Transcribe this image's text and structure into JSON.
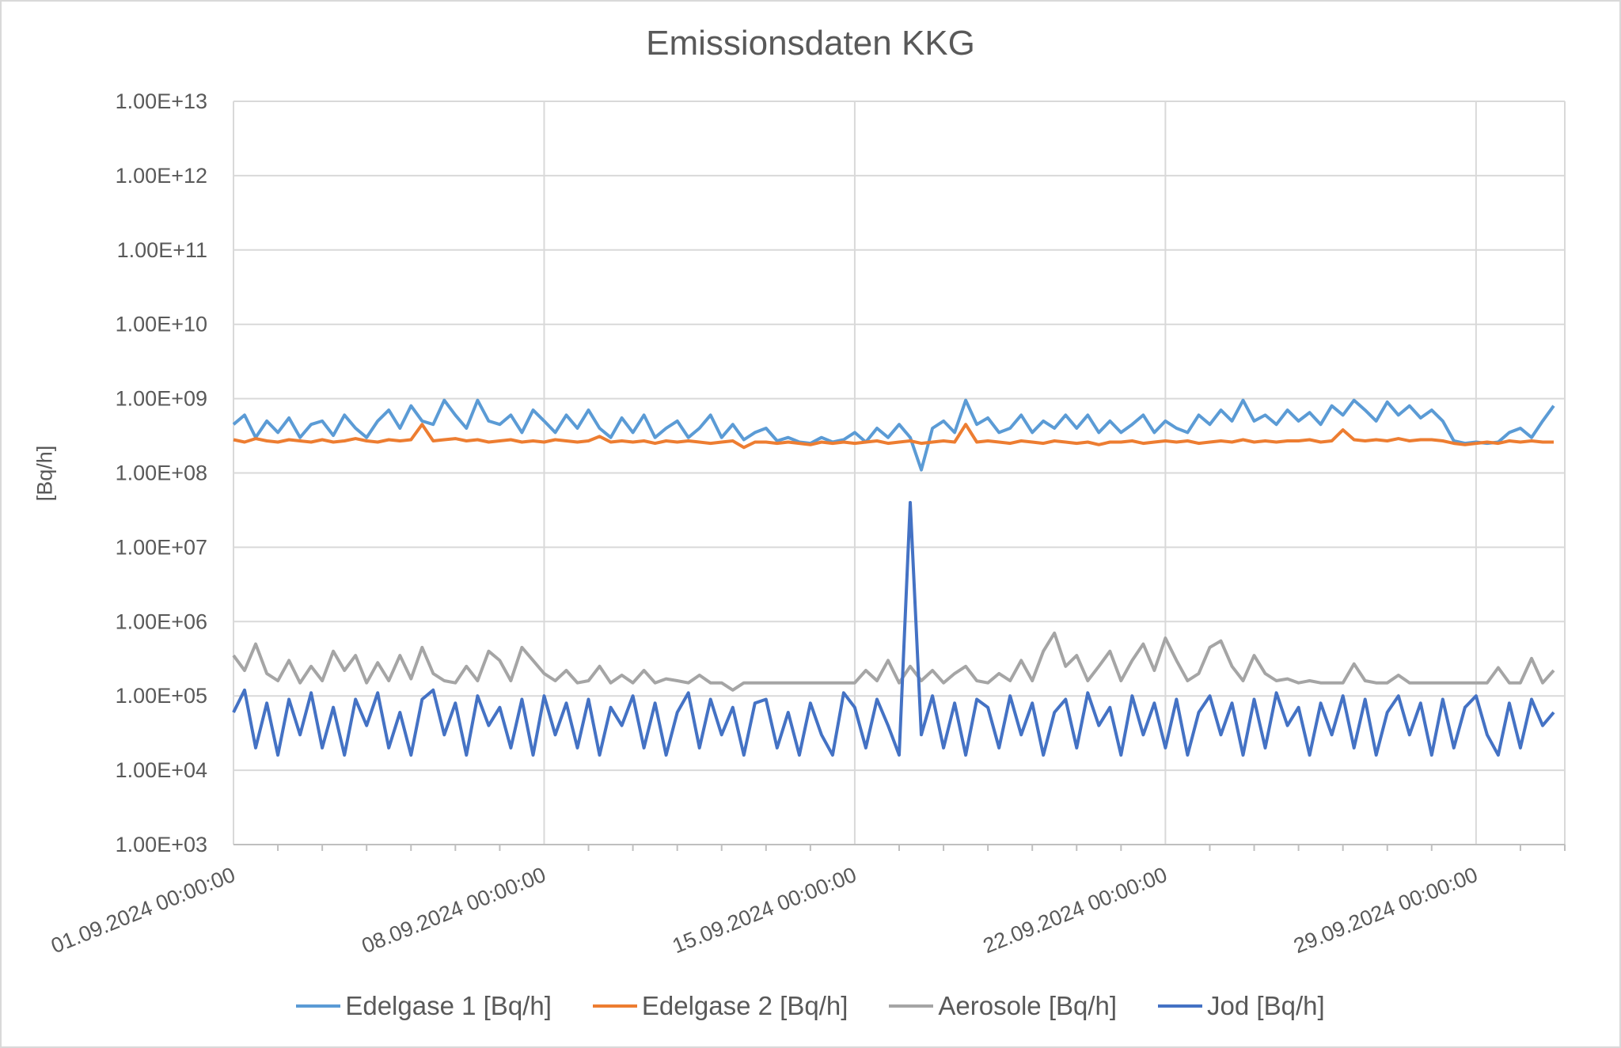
{
  "chart_data": {
    "type": "line",
    "title": "Emissionsdaten KKG",
    "ylabel": "[Bq/h]",
    "xlabel": "",
    "y_scale": "log",
    "ylim": [
      1000,
      10000000000000
    ],
    "y_ticks": [
      "1.00E+03",
      "1.00E+04",
      "1.00E+05",
      "1.00E+06",
      "1.00E+07",
      "1.00E+08",
      "1.00E+09",
      "1.00E+10",
      "1.00E+11",
      "1.00E+12",
      "1.00E+13"
    ],
    "xlim": [
      "01.09.2024 00:00:00",
      "01.10.2024 00:00:00"
    ],
    "x_ticks": [
      "01.09.2024 00:00:00",
      "08.09.2024 00:00:00",
      "15.09.2024 00:00:00",
      "22.09.2024 00:00:00",
      "29.09.2024 00:00:00"
    ],
    "minor_tick_interval": "1 day",
    "grid": true,
    "legend_position": "bottom",
    "sampling": {
      "start": "01.09.2024 00:00:00",
      "interval_hours": 6
    },
    "series": [
      {
        "name": "Edelgase 1 [Bq/h]",
        "color": "#5B9BD5",
        "values": [
          450000000.0,
          600000000.0,
          300000000.0,
          500000000.0,
          350000000.0,
          550000000.0,
          300000000.0,
          450000000.0,
          500000000.0,
          320000000.0,
          600000000.0,
          400000000.0,
          300000000.0,
          500000000.0,
          700000000.0,
          400000000.0,
          800000000.0,
          500000000.0,
          450000000.0,
          950000000.0,
          600000000.0,
          400000000.0,
          950000000.0,
          500000000.0,
          450000000.0,
          600000000.0,
          350000000.0,
          700000000.0,
          500000000.0,
          350000000.0,
          600000000.0,
          400000000.0,
          700000000.0,
          400000000.0,
          300000000.0,
          550000000.0,
          350000000.0,
          600000000.0,
          300000000.0,
          400000000.0,
          500000000.0,
          300000000.0,
          400000000.0,
          600000000.0,
          300000000.0,
          450000000.0,
          280000000.0,
          350000000.0,
          400000000.0,
          270000000.0,
          300000000.0,
          260000000.0,
          250000000.0,
          300000000.0,
          260000000.0,
          280000000.0,
          350000000.0,
          260000000.0,
          400000000.0,
          300000000.0,
          450000000.0,
          300000000.0,
          110000000.0,
          400000000.0,
          500000000.0,
          350000000.0,
          950000000.0,
          450000000.0,
          550000000.0,
          350000000.0,
          400000000.0,
          600000000.0,
          350000000.0,
          500000000.0,
          400000000.0,
          600000000.0,
          400000000.0,
          600000000.0,
          350000000.0,
          500000000.0,
          350000000.0,
          450000000.0,
          600000000.0,
          350000000.0,
          500000000.0,
          400000000.0,
          350000000.0,
          600000000.0,
          450000000.0,
          700000000.0,
          500000000.0,
          950000000.0,
          500000000.0,
          600000000.0,
          450000000.0,
          700000000.0,
          500000000.0,
          650000000.0,
          450000000.0,
          800000000.0,
          600000000.0,
          950000000.0,
          700000000.0,
          500000000.0,
          900000000.0,
          600000000.0,
          800000000.0,
          550000000.0,
          700000000.0,
          500000000.0,
          270000000.0,
          250000000.0,
          260000000.0,
          250000000.0,
          260000000.0,
          350000000.0,
          400000000.0,
          300000000.0,
          500000000.0,
          800000000.0
        ]
      },
      {
        "name": "Edelgase 2 [Bq/h]",
        "color": "#ED7D31",
        "values": [
          280000000.0,
          260000000.0,
          290000000.0,
          270000000.0,
          260000000.0,
          280000000.0,
          270000000.0,
          260000000.0,
          280000000.0,
          260000000.0,
          270000000.0,
          290000000.0,
          270000000.0,
          260000000.0,
          280000000.0,
          270000000.0,
          280000000.0,
          450000000.0,
          270000000.0,
          280000000.0,
          290000000.0,
          270000000.0,
          280000000.0,
          260000000.0,
          270000000.0,
          280000000.0,
          260000000.0,
          270000000.0,
          260000000.0,
          280000000.0,
          270000000.0,
          260000000.0,
          270000000.0,
          310000000.0,
          260000000.0,
          270000000.0,
          260000000.0,
          270000000.0,
          250000000.0,
          270000000.0,
          260000000.0,
          270000000.0,
          260000000.0,
          250000000.0,
          260000000.0,
          270000000.0,
          220000000.0,
          260000000.0,
          260000000.0,
          250000000.0,
          260000000.0,
          250000000.0,
          240000000.0,
          260000000.0,
          250000000.0,
          260000000.0,
          250000000.0,
          260000000.0,
          270000000.0,
          250000000.0,
          260000000.0,
          270000000.0,
          250000000.0,
          260000000.0,
          270000000.0,
          260000000.0,
          450000000.0,
          260000000.0,
          270000000.0,
          260000000.0,
          250000000.0,
          270000000.0,
          260000000.0,
          250000000.0,
          270000000.0,
          260000000.0,
          250000000.0,
          260000000.0,
          240000000.0,
          260000000.0,
          260000000.0,
          270000000.0,
          250000000.0,
          260000000.0,
          270000000.0,
          260000000.0,
          270000000.0,
          250000000.0,
          260000000.0,
          270000000.0,
          260000000.0,
          280000000.0,
          260000000.0,
          270000000.0,
          260000000.0,
          270000000.0,
          270000000.0,
          280000000.0,
          260000000.0,
          270000000.0,
          380000000.0,
          280000000.0,
          270000000.0,
          280000000.0,
          270000000.0,
          290000000.0,
          270000000.0,
          280000000.0,
          280000000.0,
          270000000.0,
          250000000.0,
          240000000.0,
          250000000.0,
          260000000.0,
          250000000.0,
          270000000.0,
          260000000.0,
          270000000.0,
          260000000.0,
          260000000.0
        ]
      },
      {
        "name": "Aerosole [Bq/h]",
        "color": "#A5A5A5",
        "values": [
          350000.0,
          220000.0,
          500000.0,
          200000.0,
          160000.0,
          300000.0,
          150000.0,
          250000.0,
          160000.0,
          400000.0,
          220000.0,
          350000.0,
          150000.0,
          280000.0,
          160000.0,
          350000.0,
          170000.0,
          450000.0,
          200000.0,
          160000.0,
          150000.0,
          250000.0,
          160000.0,
          400000.0,
          300000.0,
          160000.0,
          450000.0,
          300000.0,
          200000.0,
          160000.0,
          220000.0,
          150000.0,
          160000.0,
          250000.0,
          150000.0,
          190000.0,
          150000.0,
          220000.0,
          150000.0,
          170000.0,
          160000.0,
          150000.0,
          190000.0,
          150000.0,
          150000.0,
          120000.0,
          150000.0,
          150000.0,
          150000.0,
          150000.0,
          150000.0,
          150000.0,
          150000.0,
          150000.0,
          150000.0,
          150000.0,
          150000.0,
          220000.0,
          160000.0,
          300000.0,
          150000.0,
          250000.0,
          160000.0,
          220000.0,
          150000.0,
          200000.0,
          250000.0,
          160000.0,
          150000.0,
          200000.0,
          160000.0,
          300000.0,
          160000.0,
          400000.0,
          700000.0,
          250000.0,
          350000.0,
          160000.0,
          250000.0,
          400000.0,
          160000.0,
          300000.0,
          500000.0,
          220000.0,
          600000.0,
          300000.0,
          160000.0,
          200000.0,
          450000.0,
          550000.0,
          250000.0,
          160000.0,
          350000.0,
          200000.0,
          160000.0,
          170000.0,
          150000.0,
          160000.0,
          150000.0,
          150000.0,
          150000.0,
          270000.0,
          160000.0,
          150000.0,
          150000.0,
          190000.0,
          150000.0,
          150000.0,
          150000.0,
          150000.0,
          150000.0,
          150000.0,
          150000.0,
          150000.0,
          240000.0,
          150000.0,
          150000.0,
          320000.0,
          150000.0,
          220000.0
        ]
      },
      {
        "name": "Jod [Bq/h]",
        "color": "#4472C4",
        "values": [
          60000.0,
          120000.0,
          20000.0,
          80000.0,
          16000.0,
          90000.0,
          30000.0,
          110000.0,
          20000.0,
          70000.0,
          16000.0,
          90000.0,
          40000.0,
          110000.0,
          20000.0,
          60000.0,
          16000.0,
          90000.0,
          120000.0,
          30000.0,
          80000.0,
          16000.0,
          100000.0,
          40000.0,
          70000.0,
          20000.0,
          90000.0,
          16000.0,
          100000.0,
          30000.0,
          80000.0,
          20000.0,
          90000.0,
          16000.0,
          70000.0,
          40000.0,
          100000.0,
          20000.0,
          80000.0,
          16000.0,
          60000.0,
          110000.0,
          20000.0,
          90000.0,
          30000.0,
          70000.0,
          16000.0,
          80000.0,
          90000.0,
          20000.0,
          60000.0,
          16000.0,
          80000.0,
          30000.0,
          16000.0,
          110000.0,
          70000.0,
          20000.0,
          90000.0,
          40000.0,
          16000.0,
          40000000.0,
          30000.0,
          100000.0,
          20000.0,
          80000.0,
          16000.0,
          90000.0,
          70000.0,
          20000.0,
          100000.0,
          30000.0,
          80000.0,
          16000.0,
          60000.0,
          90000.0,
          20000.0,
          110000.0,
          40000.0,
          70000.0,
          16000.0,
          100000.0,
          30000.0,
          80000.0,
          20000.0,
          90000.0,
          16000.0,
          60000.0,
          100000.0,
          30000.0,
          80000.0,
          16000.0,
          90000.0,
          20000.0,
          110000.0,
          40000.0,
          70000.0,
          16000.0,
          80000.0,
          30000.0,
          100000.0,
          20000.0,
          90000.0,
          16000.0,
          60000.0,
          100000.0,
          30000.0,
          80000.0,
          16000.0,
          90000.0,
          20000.0,
          70000.0,
          100000.0,
          30000.0,
          16000.0,
          80000.0,
          20000.0,
          90000.0,
          40000.0,
          60000.0
        ]
      }
    ]
  }
}
